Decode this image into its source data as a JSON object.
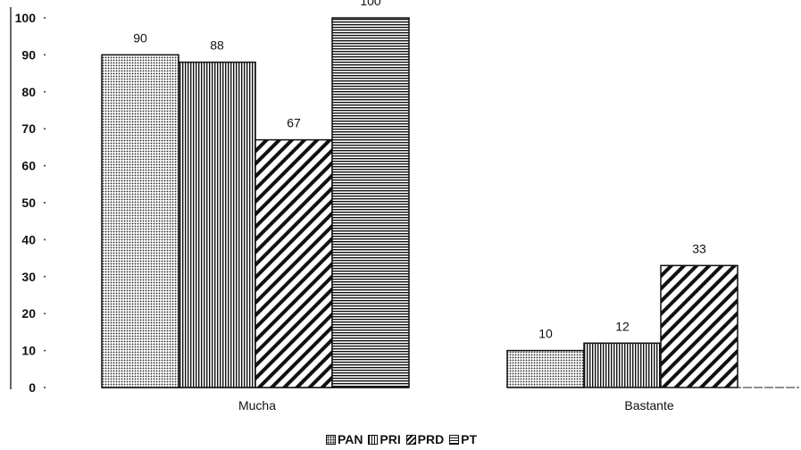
{
  "chart_data": {
    "type": "bar",
    "categories": [
      "Mucha",
      "Bastante"
    ],
    "series": [
      {
        "name": "PAN",
        "values": [
          90,
          10
        ],
        "pattern": "dots"
      },
      {
        "name": "PRI",
        "values": [
          88,
          12
        ],
        "pattern": "vertical"
      },
      {
        "name": "PRD",
        "values": [
          67,
          33
        ],
        "pattern": "diagonal"
      },
      {
        "name": "PT",
        "values": [
          100,
          null
        ],
        "pattern": "horizontal"
      }
    ],
    "ylim": [
      0,
      100
    ],
    "yticks": [
      0,
      10,
      20,
      30,
      40,
      50,
      60,
      70,
      80,
      90,
      100
    ],
    "legend_position": "bottom",
    "grid": false
  },
  "legend": {
    "items": [
      "PAN",
      "PRI",
      "PRD",
      "PT"
    ]
  }
}
